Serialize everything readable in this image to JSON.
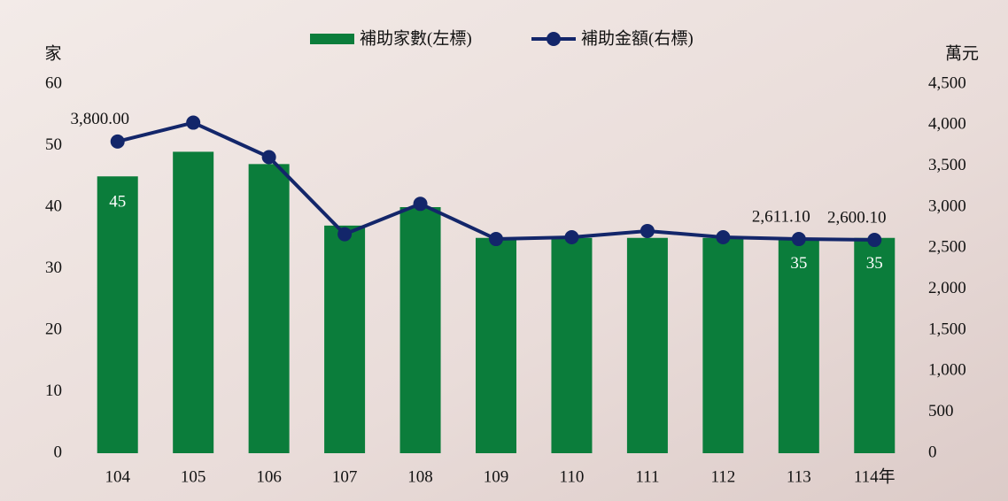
{
  "chart_data": {
    "type": "bar-line",
    "y_label": "家",
    "y2_label": "萬元",
    "categories": [
      "104",
      "105",
      "106",
      "107",
      "108",
      "109",
      "110",
      "111",
      "112",
      "113",
      "114年"
    ],
    "series": [
      {
        "name": "補助家數(左標)",
        "type": "bar",
        "color": "#0b7d3b",
        "values": [
          45,
          49,
          47,
          37,
          40,
          35,
          35,
          35,
          35,
          35,
          35
        ],
        "value_labels": [
          "45",
          null,
          null,
          null,
          null,
          null,
          null,
          null,
          null,
          "35",
          "35"
        ]
      },
      {
        "name": "補助金額(右標)",
        "type": "line",
        "axis": "y2",
        "color": "#13266a",
        "values": [
          3800,
          4030,
          3610,
          2670,
          3040,
          2611,
          2633,
          2709,
          2633,
          2611.1,
          2600.1
        ],
        "value_labels": [
          "3,800.00",
          null,
          null,
          null,
          null,
          null,
          null,
          null,
          null,
          "2,611.10",
          "2,600.10"
        ]
      }
    ],
    "ylim": [
      0,
      60
    ],
    "yticks": [
      0,
      10,
      20,
      30,
      40,
      50,
      60
    ],
    "y2lim": [
      0,
      4500
    ],
    "y2ticks": [
      0,
      500,
      {
        "value": 1000,
        "label": "1,000"
      },
      {
        "value": 1500,
        "label": "1,500"
      },
      {
        "value": 2000,
        "label": "2,000"
      },
      {
        "value": 2500,
        "label": "2,500"
      },
      {
        "value": 3000,
        "label": "3,000"
      },
      {
        "value": 3500,
        "label": "3,500"
      },
      {
        "value": 4000,
        "label": "4,000"
      },
      {
        "value": 4500,
        "label": "4,500"
      }
    ]
  }
}
